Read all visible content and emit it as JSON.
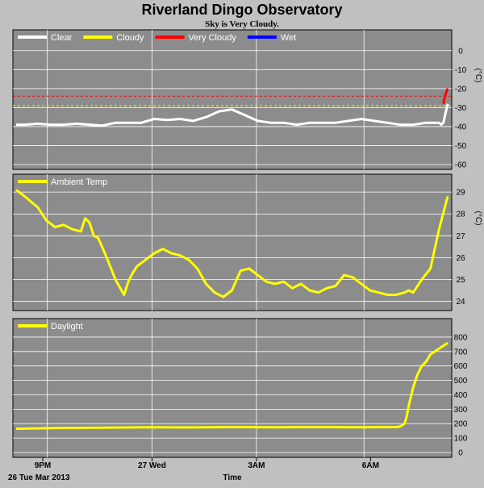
{
  "title": "Riverland Dingo Observatory",
  "subtitle": "Sky is Very Cloudy.",
  "colors": {
    "background": "#c0c0c0",
    "panel": "#8c8c8c",
    "grid": "#ffffff",
    "clear": "#ffffff",
    "cloudy": "#ffff00",
    "very_cloudy": "#ff0000",
    "wet": "#0000ff",
    "ambient": "#ffff00",
    "daylight": "#ffff00"
  },
  "x_axis": {
    "ticks": [
      "9PM",
      "27 Wed",
      "3AM",
      "6AM"
    ],
    "start_label": "26 Tue Mar 2013",
    "label": "Time"
  },
  "chart_data": [
    {
      "type": "line",
      "ylabel": "(°C)",
      "ylim": [
        -60,
        5
      ],
      "yticks": [
        0,
        -10,
        -20,
        -30,
        -40,
        -50,
        -60
      ],
      "grid": true,
      "legend_position": "top-left",
      "legend": [
        {
          "name": "Clear",
          "color": "#ffffff"
        },
        {
          "name": "Cloudy",
          "color": "#ffff00"
        },
        {
          "name": "Very Cloudy",
          "color": "#ff0000"
        },
        {
          "name": "Wet",
          "color": "#0000ff"
        }
      ],
      "thresholds": [
        {
          "name": "Very Cloudy",
          "value": -24,
          "color": "#ff0000",
          "style": "dashed"
        },
        {
          "name": "Cloudy",
          "value": -29,
          "color": "#ffff00",
          "style": "dashed"
        }
      ],
      "x": [
        0,
        0.02,
        0.05,
        0.08,
        0.11,
        0.14,
        0.17,
        0.2,
        0.23,
        0.26,
        0.29,
        0.32,
        0.35,
        0.38,
        0.41,
        0.44,
        0.47,
        0.5,
        0.53,
        0.56,
        0.59,
        0.62,
        0.65,
        0.68,
        0.71,
        0.74,
        0.77,
        0.8,
        0.83,
        0.86,
        0.89,
        0.92,
        0.95,
        0.97,
        0.98,
        0.985,
        0.99,
        0.995,
        1.0
      ],
      "series": [
        {
          "name": "Clear",
          "color": "#ffffff",
          "values": [
            -39,
            -39,
            -38.5,
            -39,
            -39,
            -38.5,
            -39,
            -39.5,
            -38,
            -38,
            -38,
            -36,
            -36.5,
            -36,
            -37,
            -35,
            -32,
            -31,
            -34,
            -37,
            -38,
            -38,
            -39,
            -38,
            -38,
            -38,
            -37,
            -36,
            -37,
            -38,
            -39,
            -39,
            -38,
            -38,
            -38,
            -39,
            -38,
            -33,
            -28
          ]
        },
        {
          "name": "Very Cloudy",
          "color": "#ff0000",
          "x": [
            0.99,
            0.995,
            1.0
          ],
          "values": [
            -28,
            -23,
            -20
          ]
        }
      ]
    },
    {
      "type": "line",
      "ylabel": "(°C)",
      "ylim": [
        23.8,
        29.3
      ],
      "yticks": [
        29,
        28,
        27,
        26,
        25,
        24
      ],
      "grid": true,
      "legend_position": "top-left",
      "legend": [
        {
          "name": "Ambient Temp",
          "color": "#ffff00"
        }
      ],
      "x": [
        0,
        0.02,
        0.05,
        0.07,
        0.09,
        0.11,
        0.13,
        0.15,
        0.16,
        0.17,
        0.18,
        0.19,
        0.21,
        0.23,
        0.25,
        0.26,
        0.27,
        0.28,
        0.3,
        0.32,
        0.34,
        0.36,
        0.38,
        0.4,
        0.42,
        0.44,
        0.46,
        0.48,
        0.5,
        0.52,
        0.54,
        0.56,
        0.58,
        0.6,
        0.62,
        0.64,
        0.66,
        0.68,
        0.7,
        0.72,
        0.74,
        0.76,
        0.78,
        0.8,
        0.82,
        0.84,
        0.86,
        0.88,
        0.9,
        0.91,
        0.92,
        0.94,
        0.96,
        0.98,
        1.0
      ],
      "series": [
        {
          "name": "Ambient Temp",
          "color": "#ffff00",
          "values": [
            29.1,
            28.8,
            28.3,
            27.7,
            27.4,
            27.5,
            27.3,
            27.2,
            27.8,
            27.6,
            27.0,
            26.9,
            26.0,
            25.0,
            24.3,
            24.9,
            25.3,
            25.6,
            25.9,
            26.2,
            26.4,
            26.2,
            26.1,
            25.9,
            25.5,
            24.8,
            24.4,
            24.2,
            24.5,
            25.4,
            25.5,
            25.2,
            24.9,
            24.8,
            24.9,
            24.6,
            24.8,
            24.5,
            24.4,
            24.6,
            24.7,
            25.2,
            25.1,
            24.8,
            24.5,
            24.4,
            24.3,
            24.3,
            24.4,
            24.5,
            24.4,
            25.0,
            25.5,
            27.3,
            28.8
          ]
        }
      ]
    },
    {
      "type": "line",
      "ylim": [
        0,
        850
      ],
      "yticks": [
        800,
        700,
        600,
        500,
        400,
        300,
        200,
        100,
        0
      ],
      "grid": true,
      "legend_position": "top-left",
      "legend": [
        {
          "name": "Daylight",
          "color": "#ffff00"
        }
      ],
      "x": [
        0,
        0.1,
        0.2,
        0.3,
        0.4,
        0.5,
        0.6,
        0.7,
        0.8,
        0.85,
        0.88,
        0.89,
        0.9,
        0.905,
        0.91,
        0.92,
        0.93,
        0.94,
        0.95,
        0.96,
        0.97,
        0.98,
        0.99,
        1.0
      ],
      "series": [
        {
          "name": "Daylight",
          "color": "#ffff00",
          "values": [
            165,
            170,
            172,
            175,
            174,
            176,
            175,
            176,
            175,
            176,
            176,
            180,
            200,
            250,
            330,
            450,
            540,
            600,
            630,
            680,
            700,
            720,
            740,
            760
          ]
        }
      ]
    }
  ]
}
